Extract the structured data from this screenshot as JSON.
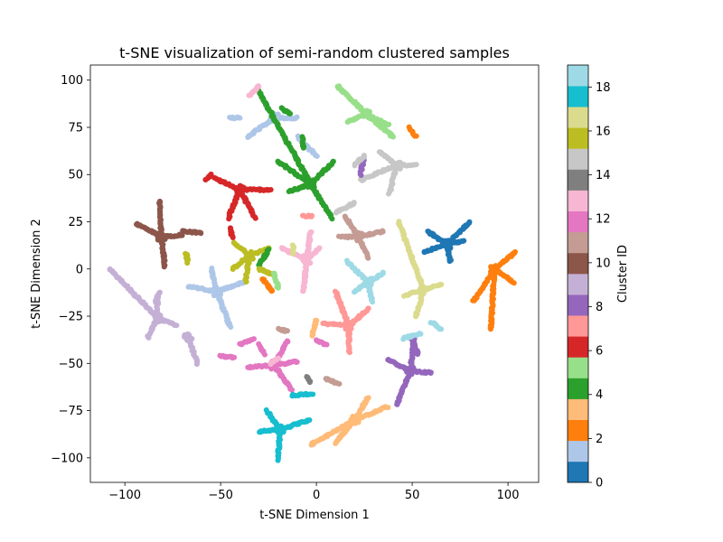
{
  "chart_data": {
    "type": "scatter",
    "title": "t-SNE visualization of semi-random clustered samples",
    "xlabel": "t-SNE Dimension 1",
    "ylabel": "t-SNE Dimension 2",
    "xlim": [
      -118,
      116
    ],
    "ylim": [
      -113,
      108
    ],
    "xticks": [
      -100,
      -50,
      0,
      50,
      100
    ],
    "yticks": [
      -100,
      -75,
      -50,
      -25,
      0,
      25,
      50,
      75,
      100
    ],
    "grid": false,
    "colorbar": {
      "label": "Cluster ID",
      "range": [
        0,
        19
      ],
      "ticks": [
        0,
        2,
        4,
        6,
        8,
        10,
        12,
        14,
        16,
        18
      ],
      "colormap": "tab20",
      "colors": [
        "#1f77b4",
        "#aec7e8",
        "#ff7f0e",
        "#ffbb78",
        "#2ca02c",
        "#98df8a",
        "#d62728",
        "#ff9896",
        "#9467bd",
        "#c5b0d5",
        "#8c564b",
        "#c49c94",
        "#e377c2",
        "#f7b6d2",
        "#7f7f7f",
        "#c7c7c7",
        "#bcbd22",
        "#dbdb8d",
        "#17becf",
        "#9edae5"
      ]
    },
    "clusters": [
      {
        "id": 0,
        "center": [
          68,
          13
        ],
        "arms": [
          [
            80,
            25
          ],
          [
            70,
            4
          ],
          [
            58,
            20
          ],
          [
            56,
            9
          ],
          [
            77,
            15
          ]
        ]
      },
      {
        "id": 1,
        "center": [
          -52,
          -12
        ],
        "arms": [
          [
            -38,
            -7
          ],
          [
            -45,
            -31
          ],
          [
            -67,
            -9
          ],
          [
            -55,
            0
          ]
        ]
      },
      {
        "id": 1,
        "center": [
          -22,
          80
        ],
        "arms": [
          [
            -10,
            80
          ],
          [
            -36,
            70
          ]
        ]
      },
      {
        "id": 2,
        "center": [
          93,
          0
        ],
        "arms": [
          [
            104,
            9
          ],
          [
            82,
            -17
          ],
          [
            103,
            -7
          ],
          [
            91,
            -32
          ]
        ]
      },
      {
        "id": 3,
        "center": [
          20,
          -80
        ],
        "arms": [
          [
            37,
            -73
          ],
          [
            10,
            -92
          ],
          [
            27,
            -68
          ],
          [
            -3,
            -93
          ]
        ]
      },
      {
        "id": 4,
        "center": [
          -3,
          45
        ],
        "arms": [
          [
            9,
            57
          ],
          [
            -20,
            57
          ],
          [
            -14,
            41
          ],
          [
            8,
            27
          ],
          [
            -30,
            94
          ]
        ]
      },
      {
        "id": 5,
        "center": [
          26,
          82
        ],
        "arms": [
          [
            11,
            97
          ],
          [
            16,
            78
          ],
          [
            38,
            76
          ],
          [
            40,
            70
          ]
        ]
      },
      {
        "id": 6,
        "center": [
          -40,
          42
        ],
        "arms": [
          [
            -24,
            42
          ],
          [
            -53,
            48
          ],
          [
            -32,
            27
          ],
          [
            -46,
            27
          ]
        ]
      },
      {
        "id": 7,
        "center": [
          17,
          -30
        ],
        "arms": [
          [
            3,
            -29
          ],
          [
            10,
            -12
          ],
          [
            17,
            -44
          ],
          [
            27,
            -21
          ]
        ]
      },
      {
        "id": 8,
        "center": [
          49,
          -54
        ],
        "arms": [
          [
            60,
            -55
          ],
          [
            42,
            -72
          ],
          [
            37,
            -48
          ],
          [
            51,
            -36
          ]
        ]
      },
      {
        "id": 9,
        "center": [
          -83,
          -26
        ],
        "arms": [
          [
            -108,
            0
          ],
          [
            -83,
            -15
          ],
          [
            -88,
            -36
          ],
          [
            -73,
            -30
          ]
        ]
      },
      {
        "id": 9,
        "center": [
          -67,
          -36
        ],
        "arms": [
          [
            -62,
            -50
          ]
        ]
      },
      {
        "id": 10,
        "center": [
          -81,
          17
        ],
        "arms": [
          [
            -94,
            24
          ],
          [
            -82,
            36
          ],
          [
            -79,
            1
          ],
          [
            -70,
            18
          ]
        ]
      },
      {
        "id": 11,
        "center": [
          22,
          17
        ],
        "arms": [
          [
            12,
            17
          ],
          [
            15,
            28
          ],
          [
            27,
            6
          ],
          [
            35,
            20
          ]
        ]
      },
      {
        "id": 12,
        "center": [
          -22,
          -51
        ],
        "arms": [
          [
            -36,
            -52
          ],
          [
            -13,
            -64
          ],
          [
            -15,
            -38
          ],
          [
            -10,
            -49
          ]
        ]
      },
      {
        "id": 13,
        "center": [
          -5,
          5
        ],
        "arms": [
          [
            -18,
            11
          ],
          [
            -7,
            -12
          ],
          [
            2,
            11
          ],
          [
            -3,
            20
          ]
        ]
      },
      {
        "id": 15,
        "center": [
          42,
          55
        ],
        "arms": [
          [
            52,
            55
          ],
          [
            33,
            62
          ],
          [
            38,
            40
          ],
          [
            23,
            47
          ]
        ]
      },
      {
        "id": 16,
        "center": [
          -35,
          7
        ],
        "arms": [
          [
            -25,
            11
          ],
          [
            -43,
            14
          ],
          [
            -37,
            -7
          ],
          [
            -44,
            0
          ]
        ]
      },
      {
        "id": 17,
        "center": [
          56,
          -11
        ],
        "arms": [
          [
            65,
            -8
          ],
          [
            46,
            -14
          ],
          [
            52,
            -25
          ],
          [
            43,
            25
          ]
        ]
      },
      {
        "id": 18,
        "center": [
          -19,
          -85
        ],
        "arms": [
          [
            -26,
            -75
          ],
          [
            -30,
            -86
          ],
          [
            -20,
            -101
          ],
          [
            -4,
            -80
          ]
        ]
      },
      {
        "id": 19,
        "center": [
          27,
          -7
        ],
        "arms": [
          [
            35,
            -2
          ],
          [
            20,
            -12
          ],
          [
            29,
            -17
          ],
          [
            16,
            4
          ]
        ]
      }
    ],
    "segments": [
      {
        "id": 1,
        "from": [
          -10,
          70
        ],
        "to": [
          0,
          60
        ]
      },
      {
        "id": 1,
        "from": [
          -45,
          80
        ],
        "to": [
          -40,
          80
        ]
      },
      {
        "id": 4,
        "from": [
          -25,
          10
        ],
        "to": [
          -30,
          2
        ]
      },
      {
        "id": 4,
        "from": [
          -18,
          85
        ],
        "to": [
          -14,
          82
        ]
      },
      {
        "id": 4,
        "from": [
          -7,
          70
        ],
        "to": [
          -7,
          64
        ]
      },
      {
        "id": 13,
        "from": [
          -30,
          97
        ],
        "to": [
          -35,
          92
        ]
      },
      {
        "id": 2,
        "from": [
          -28,
          -5
        ],
        "to": [
          -23,
          -12
        ]
      },
      {
        "id": 6,
        "from": [
          -45,
          22
        ],
        "to": [
          -44,
          17
        ]
      },
      {
        "id": 6,
        "from": [
          -55,
          50
        ],
        "to": [
          -58,
          47
        ]
      },
      {
        "id": 8,
        "from": [
          25,
          60
        ],
        "to": [
          23,
          50
        ]
      },
      {
        "id": 8,
        "from": [
          50,
          -37
        ],
        "to": [
          53,
          -45
        ]
      },
      {
        "id": 9,
        "from": [
          -82,
          -12
        ],
        "to": [
          -84,
          -18
        ]
      },
      {
        "id": 10,
        "from": [
          -70,
          20
        ],
        "to": [
          -60,
          19
        ]
      },
      {
        "id": 11,
        "from": [
          -15,
          -33
        ],
        "to": [
          -20,
          -32
        ]
      },
      {
        "id": 12,
        "from": [
          -30,
          -40
        ],
        "to": [
          -27,
          -45
        ]
      },
      {
        "id": 12,
        "from": [
          -50,
          -46
        ],
        "to": [
          -43,
          -47
        ]
      },
      {
        "id": 13,
        "from": [
          -24,
          -50
        ],
        "to": [
          -20,
          -47
        ]
      },
      {
        "id": 15,
        "from": [
          20,
          55
        ],
        "to": [
          25,
          60
        ]
      },
      {
        "id": 16,
        "from": [
          -30,
          0
        ],
        "to": [
          -23,
          -3
        ]
      },
      {
        "id": 16,
        "from": [
          -68,
          8
        ],
        "to": [
          -67,
          3
        ]
      },
      {
        "id": 17,
        "from": [
          -12,
          13
        ],
        "to": [
          -12,
          8
        ]
      },
      {
        "id": 18,
        "from": [
          -13,
          -67
        ],
        "to": [
          -2,
          -66
        ]
      },
      {
        "id": 19,
        "from": [
          45,
          -37
        ],
        "to": [
          54,
          -34
        ]
      },
      {
        "id": 19,
        "from": [
          65,
          -32
        ],
        "to": [
          60,
          -28
        ]
      },
      {
        "id": 2,
        "from": [
          48,
          75
        ],
        "to": [
          52,
          70
        ]
      },
      {
        "id": 15,
        "from": [
          10,
          30
        ],
        "to": [
          20,
          35
        ]
      },
      {
        "id": 11,
        "from": [
          12,
          -61
        ],
        "to": [
          5,
          -58
        ]
      },
      {
        "id": 14,
        "from": [
          -3,
          -60
        ],
        "to": [
          -5,
          -57
        ]
      },
      {
        "id": 7,
        "from": [
          -7,
          28
        ],
        "to": [
          -2,
          28
        ]
      },
      {
        "id": 3,
        "from": [
          0,
          -27
        ],
        "to": [
          -2,
          -35
        ]
      },
      {
        "id": 5,
        "from": [
          -20,
          -10
        ],
        "to": [
          -22,
          -2
        ]
      },
      {
        "id": 12,
        "from": [
          5,
          -40
        ],
        "to": [
          0,
          -38
        ]
      },
      {
        "id": 12,
        "from": [
          -40,
          -40
        ],
        "to": [
          -33,
          -37
        ]
      }
    ]
  }
}
